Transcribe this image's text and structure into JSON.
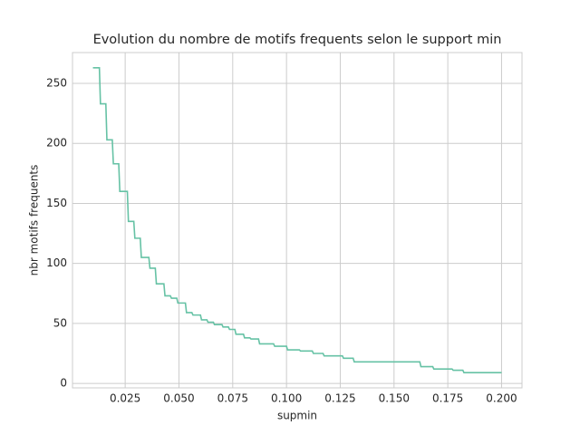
{
  "chart_data": {
    "type": "line",
    "title": "Evolution du nombre de motifs frequents selon le support min",
    "xlabel": "supmin",
    "ylabel": "nbr motifs frequents",
    "x": [
      0.01,
      0.013,
      0.0135,
      0.016,
      0.0165,
      0.019,
      0.0195,
      0.022,
      0.0225,
      0.026,
      0.0265,
      0.029,
      0.0295,
      0.032,
      0.0325,
      0.036,
      0.0365,
      0.039,
      0.0395,
      0.043,
      0.0435,
      0.046,
      0.0465,
      0.049,
      0.0495,
      0.053,
      0.0535,
      0.056,
      0.0565,
      0.06,
      0.0605,
      0.063,
      0.0635,
      0.066,
      0.0665,
      0.07,
      0.0705,
      0.073,
      0.0735,
      0.076,
      0.0765,
      0.08,
      0.0805,
      0.083,
      0.0835,
      0.087,
      0.0875,
      0.094,
      0.0945,
      0.1,
      0.1005,
      0.106,
      0.1065,
      0.112,
      0.1125,
      0.117,
      0.1175,
      0.126,
      0.1265,
      0.131,
      0.1315,
      0.162,
      0.1625,
      0.168,
      0.1685,
      0.177,
      0.1775,
      0.182,
      0.1825,
      0.2
    ],
    "series": [
      {
        "color": "#66c2a5",
        "values": [
          263,
          263,
          233,
          233,
          203,
          203,
          183,
          183,
          160,
          160,
          135,
          135,
          121,
          121,
          105,
          105,
          96,
          96,
          83,
          83,
          73,
          73,
          71,
          71,
          67,
          67,
          59,
          59,
          57,
          57,
          53,
          53,
          51,
          51,
          49,
          49,
          47,
          47,
          45,
          45,
          41,
          41,
          38,
          38,
          37,
          37,
          33,
          33,
          31,
          31,
          28,
          28,
          27,
          27,
          25,
          25,
          23,
          23,
          21,
          21,
          18,
          18,
          14,
          14,
          12,
          12,
          11,
          11,
          9,
          9
        ]
      }
    ],
    "xlim": [
      0.0005,
      0.2095
    ],
    "ylim": [
      -3.7,
      275.7
    ],
    "xticks": [
      0.025,
      {
        "value": 0.05,
        "label": "0.050"
      },
      0.075,
      {
        "value": 0.1,
        "label": "0.100"
      },
      0.125,
      {
        "value": 0.15,
        "label": "0.150"
      },
      0.175,
      {
        "value": 0.2,
        "label": "0.200"
      }
    ],
    "yticks": [
      0,
      50,
      100,
      150,
      200,
      250
    ],
    "grid": true
  }
}
